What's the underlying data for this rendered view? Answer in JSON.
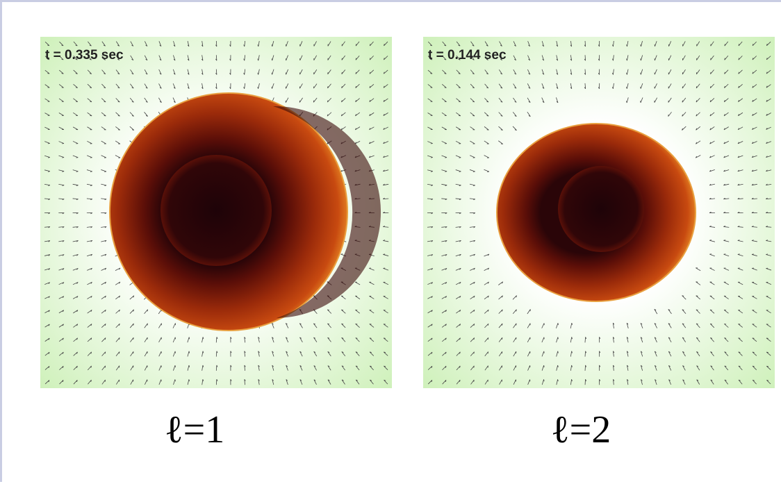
{
  "panels": [
    {
      "time_label": "t = 0.335 sec",
      "caption": "ℓ=1"
    },
    {
      "time_label": "t = 0.144 sec",
      "caption": "ℓ=2"
    }
  ]
}
